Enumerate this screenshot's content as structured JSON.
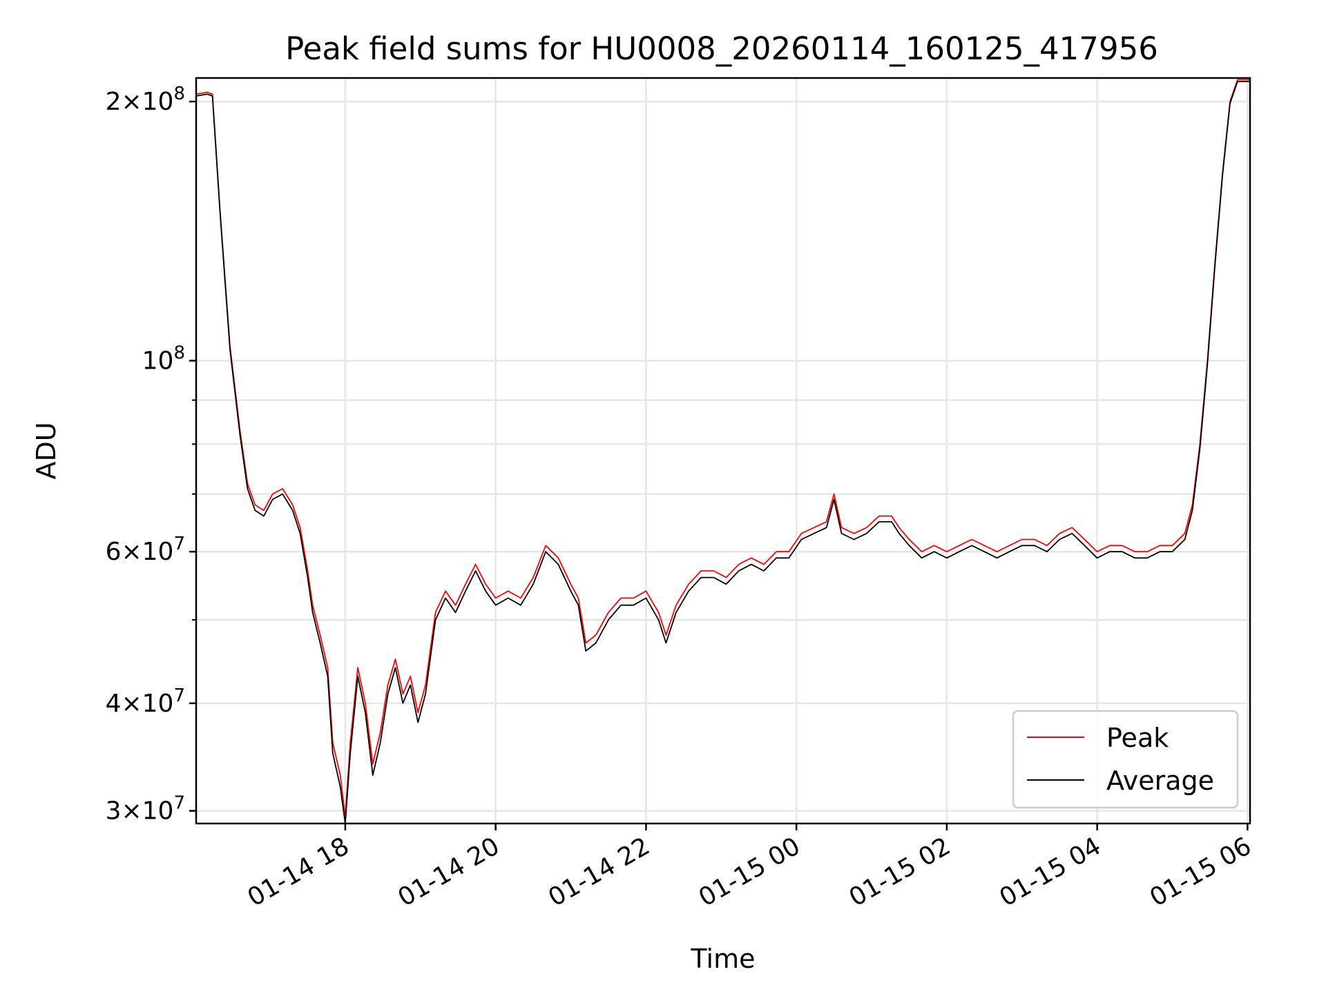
{
  "chart_data": {
    "type": "line",
    "title": "Peak field sums for HU0008_20260114_160125_417956",
    "xlabel": "Time",
    "ylabel": "ADU",
    "y_scale": "log",
    "ylim": [
      29000000,
      213000000
    ],
    "xlim": [
      "2026-01-14 16:01",
      "2026-01-15 06:02"
    ],
    "grid": true,
    "legend_position": "lower-right",
    "x_ticks": [
      {
        "value": "2026-01-14 18:00",
        "label": "01-14 18"
      },
      {
        "value": "2026-01-14 20:00",
        "label": "01-14 20"
      },
      {
        "value": "2026-01-14 22:00",
        "label": "01-14 22"
      },
      {
        "value": "2026-01-15 00:00",
        "label": "01-15 00"
      },
      {
        "value": "2026-01-15 02:00",
        "label": "01-15 02"
      },
      {
        "value": "2026-01-15 04:00",
        "label": "01-15 04"
      },
      {
        "value": "2026-01-15 06:00",
        "label": "01-15 06"
      }
    ],
    "y_ticks": [
      {
        "value": 30000000,
        "mant": "3",
        "exp": "7"
      },
      {
        "value": 40000000,
        "mant": "4",
        "exp": "7"
      },
      {
        "value": 60000000,
        "mant": "6",
        "exp": "7"
      },
      {
        "value": 100000000,
        "mant": "",
        "exp": "8"
      },
      {
        "value": 200000000,
        "mant": "2",
        "exp": "8"
      }
    ],
    "y_minor_ticks": [
      50000000,
      70000000,
      80000000,
      90000000
    ],
    "series": [
      {
        "name": "Peak",
        "color": "#ff0000",
        "x": [
          "2026-01-14 16:01",
          "2026-01-14 16:10",
          "2026-01-14 16:14",
          "2026-01-14 16:20",
          "2026-01-14 16:28",
          "2026-01-14 16:36",
          "2026-01-14 16:42",
          "2026-01-14 16:48",
          "2026-01-14 16:55",
          "2026-01-14 17:02",
          "2026-01-14 17:10",
          "2026-01-14 17:18",
          "2026-01-14 17:24",
          "2026-01-14 17:30",
          "2026-01-14 17:34",
          "2026-01-14 17:40",
          "2026-01-14 17:46",
          "2026-01-14 17:50",
          "2026-01-14 17:56",
          "2026-01-14 18:00",
          "2026-01-14 18:04",
          "2026-01-14 18:10",
          "2026-01-14 18:16",
          "2026-01-14 18:22",
          "2026-01-14 18:28",
          "2026-01-14 18:34",
          "2026-01-14 18:40",
          "2026-01-14 18:46",
          "2026-01-14 18:52",
          "2026-01-14 18:58",
          "2026-01-14 19:04",
          "2026-01-14 19:12",
          "2026-01-14 19:20",
          "2026-01-14 19:28",
          "2026-01-14 19:36",
          "2026-01-14 19:44",
          "2026-01-14 19:52",
          "2026-01-14 20:00",
          "2026-01-14 20:10",
          "2026-01-14 20:20",
          "2026-01-14 20:30",
          "2026-01-14 20:40",
          "2026-01-14 20:50",
          "2026-01-14 21:00",
          "2026-01-14 21:06",
          "2026-01-14 21:12",
          "2026-01-14 21:20",
          "2026-01-14 21:30",
          "2026-01-14 21:40",
          "2026-01-14 21:50",
          "2026-01-14 22:00",
          "2026-01-14 22:10",
          "2026-01-14 22:16",
          "2026-01-14 22:24",
          "2026-01-14 22:34",
          "2026-01-14 22:44",
          "2026-01-14 22:54",
          "2026-01-14 23:04",
          "2026-01-14 23:14",
          "2026-01-14 23:24",
          "2026-01-14 23:34",
          "2026-01-14 23:44",
          "2026-01-14 23:54",
          "2026-01-15 00:04",
          "2026-01-15 00:14",
          "2026-01-15 00:24",
          "2026-01-15 00:30",
          "2026-01-15 00:36",
          "2026-01-15 00:46",
          "2026-01-15 00:56",
          "2026-01-15 01:06",
          "2026-01-15 01:16",
          "2026-01-15 01:22",
          "2026-01-15 01:30",
          "2026-01-15 01:40",
          "2026-01-15 01:50",
          "2026-01-15 02:00",
          "2026-01-15 02:10",
          "2026-01-15 02:20",
          "2026-01-15 02:30",
          "2026-01-15 02:40",
          "2026-01-15 02:50",
          "2026-01-15 03:00",
          "2026-01-15 03:10",
          "2026-01-15 03:20",
          "2026-01-15 03:30",
          "2026-01-15 03:40",
          "2026-01-15 03:50",
          "2026-01-15 04:00",
          "2026-01-15 04:10",
          "2026-01-15 04:20",
          "2026-01-15 04:30",
          "2026-01-15 04:40",
          "2026-01-15 04:50",
          "2026-01-15 05:00",
          "2026-01-15 05:10",
          "2026-01-15 05:16",
          "2026-01-15 05:22",
          "2026-01-15 05:28",
          "2026-01-15 05:34",
          "2026-01-15 05:40",
          "2026-01-15 05:46",
          "2026-01-15 05:52",
          "2026-01-15 06:02"
        ],
        "y": [
          204000000,
          205000000,
          204000000,
          150000000,
          104000000,
          83000000,
          72000000,
          68000000,
          67000000,
          70000000,
          71000000,
          68000000,
          64000000,
          57000000,
          52000000,
          48000000,
          44000000,
          36000000,
          33000000,
          29500000,
          36000000,
          44000000,
          40000000,
          34000000,
          37000000,
          42000000,
          45000000,
          41000000,
          43000000,
          39000000,
          42000000,
          51000000,
          54000000,
          52000000,
          55000000,
          58000000,
          55000000,
          53000000,
          54000000,
          53000000,
          56000000,
          61000000,
          59000000,
          55000000,
          53000000,
          47000000,
          48000000,
          51000000,
          53000000,
          53000000,
          54000000,
          51000000,
          48000000,
          52000000,
          55000000,
          57000000,
          57000000,
          56000000,
          58000000,
          59000000,
          58000000,
          60000000,
          60000000,
          63000000,
          64000000,
          65000000,
          70000000,
          64000000,
          63000000,
          64000000,
          66000000,
          66000000,
          64000000,
          62000000,
          60000000,
          61000000,
          60000000,
          61000000,
          62000000,
          61000000,
          60000000,
          61000000,
          62000000,
          62000000,
          61000000,
          63000000,
          64000000,
          62000000,
          60000000,
          61000000,
          61000000,
          60000000,
          60000000,
          61000000,
          61000000,
          63000000,
          68000000,
          80000000,
          100000000,
          130000000,
          165000000,
          200000000,
          212000000,
          212000000
        ]
      },
      {
        "name": "Average",
        "color": "#000000",
        "x": [
          "2026-01-14 16:01",
          "2026-01-14 16:10",
          "2026-01-14 16:14",
          "2026-01-14 16:20",
          "2026-01-14 16:28",
          "2026-01-14 16:36",
          "2026-01-14 16:42",
          "2026-01-14 16:48",
          "2026-01-14 16:55",
          "2026-01-14 17:02",
          "2026-01-14 17:10",
          "2026-01-14 17:18",
          "2026-01-14 17:24",
          "2026-01-14 17:30",
          "2026-01-14 17:34",
          "2026-01-14 17:40",
          "2026-01-14 17:46",
          "2026-01-14 17:50",
          "2026-01-14 17:56",
          "2026-01-14 18:00",
          "2026-01-14 18:04",
          "2026-01-14 18:10",
          "2026-01-14 18:16",
          "2026-01-14 18:22",
          "2026-01-14 18:28",
          "2026-01-14 18:34",
          "2026-01-14 18:40",
          "2026-01-14 18:46",
          "2026-01-14 18:52",
          "2026-01-14 18:58",
          "2026-01-14 19:04",
          "2026-01-14 19:12",
          "2026-01-14 19:20",
          "2026-01-14 19:28",
          "2026-01-14 19:36",
          "2026-01-14 19:44",
          "2026-01-14 19:52",
          "2026-01-14 20:00",
          "2026-01-14 20:10",
          "2026-01-14 20:20",
          "2026-01-14 20:30",
          "2026-01-14 20:40",
          "2026-01-14 20:50",
          "2026-01-14 21:00",
          "2026-01-14 21:06",
          "2026-01-14 21:12",
          "2026-01-14 21:20",
          "2026-01-14 21:30",
          "2026-01-14 21:40",
          "2026-01-14 21:50",
          "2026-01-14 22:00",
          "2026-01-14 22:10",
          "2026-01-14 22:16",
          "2026-01-14 22:24",
          "2026-01-14 22:34",
          "2026-01-14 22:44",
          "2026-01-14 22:54",
          "2026-01-14 23:04",
          "2026-01-14 23:14",
          "2026-01-14 23:24",
          "2026-01-14 23:34",
          "2026-01-14 23:44",
          "2026-01-14 23:54",
          "2026-01-15 00:04",
          "2026-01-15 00:14",
          "2026-01-15 00:24",
          "2026-01-15 00:30",
          "2026-01-15 00:36",
          "2026-01-15 00:46",
          "2026-01-15 00:56",
          "2026-01-15 01:06",
          "2026-01-15 01:16",
          "2026-01-15 01:22",
          "2026-01-15 01:30",
          "2026-01-15 01:40",
          "2026-01-15 01:50",
          "2026-01-15 02:00",
          "2026-01-15 02:10",
          "2026-01-15 02:20",
          "2026-01-15 02:30",
          "2026-01-15 02:40",
          "2026-01-15 02:50",
          "2026-01-15 03:00",
          "2026-01-15 03:10",
          "2026-01-15 03:20",
          "2026-01-15 03:30",
          "2026-01-15 03:40",
          "2026-01-15 03:50",
          "2026-01-15 04:00",
          "2026-01-15 04:10",
          "2026-01-15 04:20",
          "2026-01-15 04:30",
          "2026-01-15 04:40",
          "2026-01-15 04:50",
          "2026-01-15 05:00",
          "2026-01-15 05:10",
          "2026-01-15 05:16",
          "2026-01-15 05:22",
          "2026-01-15 05:28",
          "2026-01-15 05:34",
          "2026-01-15 05:40",
          "2026-01-15 05:46",
          "2026-01-15 05:52",
          "2026-01-15 06:02"
        ],
        "y": [
          203000000,
          204000000,
          203000000,
          149000000,
          103000000,
          82000000,
          71000000,
          67000000,
          66000000,
          69000000,
          70000000,
          67000000,
          63000000,
          56000000,
          51000000,
          47000000,
          43000000,
          35000000,
          32000000,
          29000000,
          35000000,
          43000000,
          39000000,
          33000000,
          36000000,
          41000000,
          44000000,
          40000000,
          42000000,
          38000000,
          41000000,
          50000000,
          53000000,
          51000000,
          54000000,
          57000000,
          54000000,
          52000000,
          53000000,
          52000000,
          55000000,
          60000000,
          58000000,
          54000000,
          52000000,
          46000000,
          47000000,
          50000000,
          52000000,
          52000000,
          53000000,
          50000000,
          47000000,
          51000000,
          54000000,
          56000000,
          56000000,
          55000000,
          57000000,
          58000000,
          57000000,
          59000000,
          59000000,
          62000000,
          63000000,
          64000000,
          69000000,
          63000000,
          62000000,
          63000000,
          65000000,
          65000000,
          63000000,
          61000000,
          59000000,
          60000000,
          59000000,
          60000000,
          61000000,
          60000000,
          59000000,
          60000000,
          61000000,
          61000000,
          60000000,
          62000000,
          63000000,
          61000000,
          59000000,
          60000000,
          60000000,
          59000000,
          59000000,
          60000000,
          60000000,
          62000000,
          67000000,
          79000000,
          99000000,
          129000000,
          164000000,
          199000000,
          211000000,
          211000000
        ]
      }
    ]
  }
}
